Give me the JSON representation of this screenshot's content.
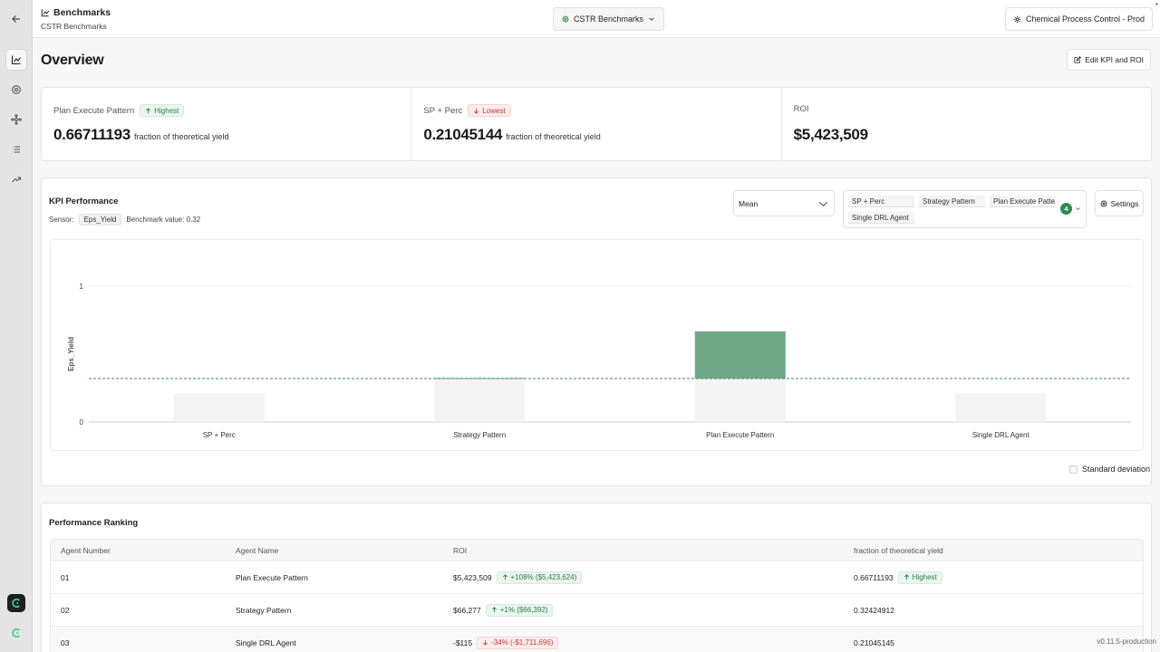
{
  "header": {
    "title": "Benchmarks",
    "subtitle": "CSTR Benchmarks",
    "project": "CSTR Benchmarks",
    "environment": "Chemical Process Control - Prod",
    "corner_mark": "*"
  },
  "icons": {
    "back": "arrow-left-icon",
    "rail": [
      "line-chart-icon",
      "gear-icon",
      "network-icon",
      "list-icon",
      "trending-up-icon"
    ],
    "brand": "app-logo-icon"
  },
  "overview": {
    "title": "Overview",
    "edit_label": "Edit KPI and ROI",
    "kpis": [
      {
        "label": "Plan Execute Pattern",
        "badge": "Highest",
        "value": "0.66711193",
        "unit": "fraction of theoretical yield"
      },
      {
        "label": "SP + Perc",
        "badge": "Lowest",
        "value": "0.21045144",
        "unit": "fraction of theoretical yield"
      },
      {
        "label": "ROI",
        "value": "$5,423,509"
      }
    ]
  },
  "kpi_performance": {
    "title": "KPI Performance",
    "sensor_label": "Sensor:",
    "sensor": "Eps_Yield",
    "benchmark_text": "Benchmark value: 0.32",
    "aggregation": "Mean",
    "selected_agents": [
      "SP + Perc",
      "Strategy Pattern",
      "Plan Execute Patte...",
      "Single DRL Agent"
    ],
    "selected_count": "4",
    "settings_label": "Settings",
    "std_label": "Standard deviation"
  },
  "chart_data": {
    "type": "bar",
    "categories": [
      "SP + Perc",
      "Strategy Pattern",
      "Plan Execute Pattern",
      "Single DRL Agent"
    ],
    "values": [
      0.21045144,
      0.32424912,
      0.66711193,
      0.21045145
    ],
    "benchmark": 0.32,
    "ylabel": "Eps_Yield",
    "ylim": [
      0,
      1
    ],
    "yticks": [
      "0",
      "1"
    ],
    "colors": {
      "above": "#6ea885",
      "below": "#f3f3f3",
      "benchmark_line": "#3d8c5f"
    },
    "grid": true
  },
  "ranking": {
    "title": "Performance Ranking",
    "columns": [
      "Agent Number",
      "Agent Name",
      "ROI",
      "fraction of theoretical yield"
    ],
    "rows": [
      {
        "num": "01",
        "name": "Plan Execute Pattern",
        "roi": "$5,423,509",
        "roi_change": "+108% ($5,423,624)",
        "dir": "up",
        "yield": "0.66711193",
        "yield_badge": "Highest"
      },
      {
        "num": "02",
        "name": "Strategy Pattern",
        "roi": "$66,277",
        "roi_change": "+1% ($66,392)",
        "dir": "up",
        "yield": "0.32424912",
        "yield_badge": ""
      },
      {
        "num": "03",
        "name": "Single DRL Agent",
        "roi": "-$115",
        "roi_change": "-34% (-$1,711,696)",
        "dir": "down",
        "yield": "0.21045145",
        "yield_badge": ""
      }
    ]
  },
  "version": "v0.11.5-production"
}
